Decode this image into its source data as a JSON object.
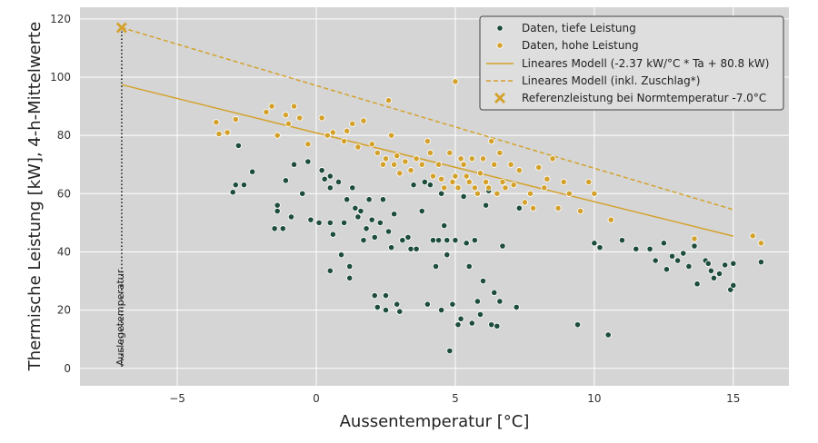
{
  "chart_data": {
    "type": "scatter",
    "xlabel": "Aussentemperatur [°C]",
    "ylabel": "Thermische Leistung [kW], 4-h-Mittelwerte",
    "xlim": [
      -8.5,
      17
    ],
    "ylim": [
      -6,
      124
    ],
    "xticks": [
      -5,
      0,
      5,
      10,
      15
    ],
    "yticks": [
      0,
      20,
      40,
      60,
      80,
      100,
      120
    ],
    "grid": true,
    "legend_position": "top-right",
    "colors": {
      "low": "#1e4d3c",
      "high": "#d4a22c",
      "model": "#d4a22c",
      "background": "#d5d5d5"
    },
    "legend": [
      "Daten, tiefe Leistung",
      "Daten, hohe Leistung",
      "Lineares Modell (-2.37 kW/°C * Ta + 80.8 kW)",
      "Lineares Modell (inkl. Zuschlag*)",
      "Referenzleistung bei Normtemperatur -7.0°C"
    ],
    "vline": {
      "x": -7.0,
      "label": "Auslegetemperatur"
    },
    "reference_point": {
      "x": -7.0,
      "y": 117
    },
    "model_line": {
      "x": [
        -7,
        15
      ],
      "y": [
        97.4,
        45.4
      ]
    },
    "model_line_surcharge": {
      "x": [
        -7,
        15
      ],
      "y": [
        117,
        54.5
      ]
    },
    "series": [
      {
        "name": "Daten, tiefe Leistung",
        "points": [
          [
            -3,
            60.5
          ],
          [
            -2.9,
            63
          ],
          [
            -2.8,
            76.5
          ],
          [
            -2.6,
            63
          ],
          [
            -2.3,
            67.5
          ],
          [
            -1.5,
            48
          ],
          [
            -1.4,
            56
          ],
          [
            -1.4,
            54
          ],
          [
            -1.2,
            48
          ],
          [
            -1.1,
            64.5
          ],
          [
            -0.9,
            52
          ],
          [
            -0.8,
            70
          ],
          [
            -0.5,
            60
          ],
          [
            -0.3,
            71
          ],
          [
            -0.2,
            51
          ],
          [
            0.1,
            50
          ],
          [
            0.2,
            68
          ],
          [
            0.3,
            65
          ],
          [
            0.5,
            62
          ],
          [
            0.5,
            66
          ],
          [
            0.5,
            50
          ],
          [
            0.5,
            33.5
          ],
          [
            0.6,
            46
          ],
          [
            0.8,
            64
          ],
          [
            0.9,
            39
          ],
          [
            1.0,
            50
          ],
          [
            1.1,
            58
          ],
          [
            1.2,
            35
          ],
          [
            1.2,
            31
          ],
          [
            1.3,
            62
          ],
          [
            1.4,
            55
          ],
          [
            1.5,
            52
          ],
          [
            1.6,
            54
          ],
          [
            1.7,
            44
          ],
          [
            1.8,
            48
          ],
          [
            1.9,
            58
          ],
          [
            2.0,
            51
          ],
          [
            2.1,
            45
          ],
          [
            2.1,
            25
          ],
          [
            2.2,
            21
          ],
          [
            2.3,
            50
          ],
          [
            2.4,
            58
          ],
          [
            2.5,
            25
          ],
          [
            2.5,
            20
          ],
          [
            2.6,
            47
          ],
          [
            2.7,
            41.5
          ],
          [
            2.8,
            53
          ],
          [
            2.9,
            22
          ],
          [
            3.0,
            19.5
          ],
          [
            3.1,
            44
          ],
          [
            3.3,
            45
          ],
          [
            3.4,
            41
          ],
          [
            3.5,
            63
          ],
          [
            3.6,
            41
          ],
          [
            3.8,
            54
          ],
          [
            3.9,
            64
          ],
          [
            4.0,
            22
          ],
          [
            4.1,
            63
          ],
          [
            4.2,
            44
          ],
          [
            4.3,
            35
          ],
          [
            4.4,
            44
          ],
          [
            4.5,
            60
          ],
          [
            4.5,
            20
          ],
          [
            4.6,
            49
          ],
          [
            4.7,
            44
          ],
          [
            4.7,
            39
          ],
          [
            4.8,
            6
          ],
          [
            4.9,
            22
          ],
          [
            5.0,
            44
          ],
          [
            5.1,
            15
          ],
          [
            5.2,
            17
          ],
          [
            5.3,
            59
          ],
          [
            5.4,
            43
          ],
          [
            5.5,
            35
          ],
          [
            5.6,
            15.5
          ],
          [
            5.7,
            44
          ],
          [
            5.8,
            23
          ],
          [
            5.9,
            18.5
          ],
          [
            6.0,
            30
          ],
          [
            6.1,
            56
          ],
          [
            6.2,
            61
          ],
          [
            6.3,
            15
          ],
          [
            6.4,
            26
          ],
          [
            6.5,
            14.5
          ],
          [
            6.6,
            23
          ],
          [
            6.7,
            42
          ],
          [
            7.2,
            21
          ],
          [
            7.3,
            55
          ],
          [
            9.4,
            15
          ],
          [
            10.0,
            43
          ],
          [
            10.2,
            41.5
          ],
          [
            10.5,
            11.5
          ],
          [
            11.0,
            44
          ],
          [
            11.5,
            41
          ],
          [
            12.0,
            41
          ],
          [
            12.2,
            37
          ],
          [
            12.5,
            43
          ],
          [
            12.6,
            34
          ],
          [
            12.8,
            38.5
          ],
          [
            13.0,
            37
          ],
          [
            13.2,
            39.5
          ],
          [
            13.4,
            35
          ],
          [
            13.6,
            42
          ],
          [
            13.7,
            29
          ],
          [
            14.0,
            37
          ],
          [
            14.1,
            36
          ],
          [
            14.2,
            33.5
          ],
          [
            14.3,
            31
          ],
          [
            14.5,
            32.5
          ],
          [
            14.7,
            35.5
          ],
          [
            14.9,
            27
          ],
          [
            15.0,
            28.5
          ],
          [
            15.0,
            36
          ],
          [
            16.0,
            36.5
          ]
        ]
      },
      {
        "name": "Daten, hohe Leistung",
        "points": [
          [
            -3.6,
            84.5
          ],
          [
            -3.5,
            80.5
          ],
          [
            -3.2,
            81
          ],
          [
            -2.9,
            85.5
          ],
          [
            -1.8,
            88
          ],
          [
            -1.6,
            90
          ],
          [
            -1.4,
            80
          ],
          [
            -1.1,
            87
          ],
          [
            -1.0,
            84
          ],
          [
            -0.8,
            90
          ],
          [
            -0.6,
            86
          ],
          [
            -0.3,
            77
          ],
          [
            0.2,
            86
          ],
          [
            0.4,
            80
          ],
          [
            0.6,
            81
          ],
          [
            1.0,
            78
          ],
          [
            1.1,
            81.5
          ],
          [
            1.3,
            84
          ],
          [
            1.5,
            76
          ],
          [
            1.7,
            85
          ],
          [
            2.0,
            77
          ],
          [
            2.2,
            74
          ],
          [
            2.4,
            70
          ],
          [
            2.5,
            72
          ],
          [
            2.6,
            92
          ],
          [
            2.7,
            80
          ],
          [
            2.8,
            70
          ],
          [
            2.9,
            73
          ],
          [
            3.0,
            67
          ],
          [
            3.2,
            71
          ],
          [
            3.4,
            68
          ],
          [
            3.6,
            72
          ],
          [
            3.8,
            70
          ],
          [
            4.0,
            78
          ],
          [
            4.1,
            74
          ],
          [
            4.2,
            66
          ],
          [
            4.4,
            70
          ],
          [
            4.5,
            65
          ],
          [
            4.6,
            62
          ],
          [
            4.8,
            74
          ],
          [
            4.9,
            64
          ],
          [
            5.0,
            98.5
          ],
          [
            5.0,
            66
          ],
          [
            5.1,
            62
          ],
          [
            5.2,
            72
          ],
          [
            5.3,
            70
          ],
          [
            5.4,
            66
          ],
          [
            5.5,
            64
          ],
          [
            5.6,
            72
          ],
          [
            5.7,
            62
          ],
          [
            5.8,
            60
          ],
          [
            5.9,
            67
          ],
          [
            6.0,
            72
          ],
          [
            6.1,
            64
          ],
          [
            6.2,
            62
          ],
          [
            6.3,
            78
          ],
          [
            6.4,
            70
          ],
          [
            6.5,
            60
          ],
          [
            6.6,
            74
          ],
          [
            6.7,
            64
          ],
          [
            6.8,
            62
          ],
          [
            7.0,
            70
          ],
          [
            7.1,
            63
          ],
          [
            7.3,
            68
          ],
          [
            7.5,
            57
          ],
          [
            7.7,
            60
          ],
          [
            7.8,
            55
          ],
          [
            8.0,
            69
          ],
          [
            8.2,
            62
          ],
          [
            8.3,
            65
          ],
          [
            8.5,
            72
          ],
          [
            8.7,
            55
          ],
          [
            8.9,
            64
          ],
          [
            9.1,
            60
          ],
          [
            9.5,
            54
          ],
          [
            9.8,
            64
          ],
          [
            10.0,
            60
          ],
          [
            10.6,
            51
          ],
          [
            13.6,
            44.5
          ],
          [
            15.7,
            45.5
          ],
          [
            16.0,
            43
          ]
        ]
      }
    ]
  }
}
